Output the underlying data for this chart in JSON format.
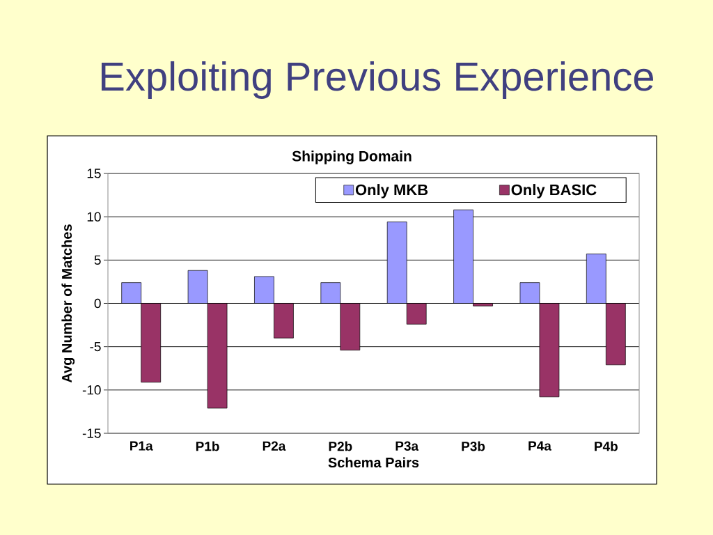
{
  "chart_data": {
    "type": "bar",
    "title": "Exploiting Previous Experience",
    "subtitle": "Shipping Domain",
    "xlabel": "Schema Pairs",
    "ylabel": "Avg Number of Matches",
    "categories": [
      "P1a",
      "P1b",
      "P2a",
      "P2b",
      "P3a",
      "P3b",
      "P4a",
      "P4b"
    ],
    "series": [
      {
        "name": "Only MKB",
        "color": "#9999ff",
        "values": [
          2.4,
          3.8,
          3.1,
          2.4,
          9.4,
          10.8,
          2.4,
          5.7
        ]
      },
      {
        "name": "Only BASIC",
        "color": "#993366",
        "values": [
          -9.1,
          -12.1,
          -4.0,
          -5.4,
          -2.4,
          -0.3,
          -10.8,
          -7.1
        ]
      }
    ],
    "ylim": [
      -15,
      15
    ],
    "yticks": [
      -15,
      -10,
      -5,
      0,
      5,
      10,
      15
    ],
    "grid": "y",
    "legend": "top right"
  }
}
